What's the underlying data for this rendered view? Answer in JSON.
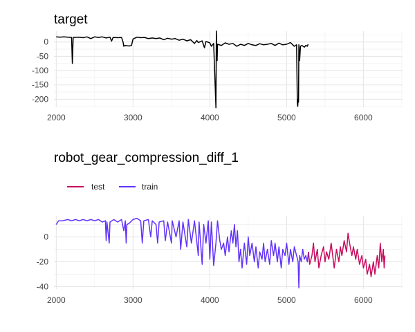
{
  "chart_data": [
    {
      "type": "line",
      "title": "target",
      "xlim": [
        1970,
        6510
      ],
      "ylim": [
        -228,
        38
      ],
      "x_ticks": [
        2000,
        3000,
        4000,
        5000,
        6000
      ],
      "y_ticks": [
        0,
        -50,
        -100,
        -150,
        -200
      ],
      "grid": true,
      "series": [
        {
          "color": "#000000",
          "points": [
            [
              2000,
              18
            ],
            [
              2050,
              17
            ],
            [
              2100,
              18
            ],
            [
              2150,
              17
            ],
            [
              2200,
              16
            ],
            [
              2210,
              -75
            ],
            [
              2220,
              16
            ],
            [
              2300,
              17
            ],
            [
              2350,
              15
            ],
            [
              2400,
              18
            ],
            [
              2450,
              12
            ],
            [
              2500,
              18
            ],
            [
              2550,
              16
            ],
            [
              2600,
              18
            ],
            [
              2650,
              14
            ],
            [
              2700,
              17
            ],
            [
              2720,
              3
            ],
            [
              2740,
              16
            ],
            [
              2800,
              15
            ],
            [
              2850,
              16
            ],
            [
              2870,
              0
            ],
            [
              2880,
              -15
            ],
            [
              2900,
              -12
            ],
            [
              2920,
              -13
            ],
            [
              2950,
              -14
            ],
            [
              2980,
              -12
            ],
            [
              3000,
              10
            ],
            [
              3050,
              17
            ],
            [
              3100,
              15
            ],
            [
              3150,
              16
            ],
            [
              3200,
              12
            ],
            [
              3250,
              14
            ],
            [
              3300,
              12
            ],
            [
              3350,
              14
            ],
            [
              3400,
              8
            ],
            [
              3450,
              13
            ],
            [
              3500,
              10
            ],
            [
              3550,
              12
            ],
            [
              3600,
              6
            ],
            [
              3650,
              10
            ],
            [
              3700,
              4
            ],
            [
              3750,
              8
            ],
            [
              3800,
              -5
            ],
            [
              3830,
              5
            ],
            [
              3850,
              -2
            ],
            [
              3900,
              4
            ],
            [
              3930,
              -20
            ],
            [
              3950,
              2
            ],
            [
              4000,
              -3
            ],
            [
              4020,
              -15
            ],
            [
              4050,
              -5
            ],
            [
              4080,
              -230
            ],
            [
              4085,
              38
            ],
            [
              4090,
              -5
            ],
            [
              4095,
              -65
            ],
            [
              4100,
              -8
            ],
            [
              4150,
              -12
            ],
            [
              4200,
              -3
            ],
            [
              4250,
              -8
            ],
            [
              4300,
              -5
            ],
            [
              4350,
              -15
            ],
            [
              4400,
              -8
            ],
            [
              4450,
              -12
            ],
            [
              4500,
              -5
            ],
            [
              4550,
              -10
            ],
            [
              4600,
              -12
            ],
            [
              4650,
              -6
            ],
            [
              4700,
              -10
            ],
            [
              4750,
              -8
            ],
            [
              4800,
              -5
            ],
            [
              4850,
              -12
            ],
            [
              4900,
              -4
            ],
            [
              4950,
              -10
            ],
            [
              5000,
              -8
            ],
            [
              5050,
              -2
            ],
            [
              5100,
              -15
            ],
            [
              5130,
              -10
            ],
            [
              5140,
              -215
            ],
            [
              5145,
              -225
            ],
            [
              5150,
              -200
            ],
            [
              5155,
              -210
            ],
            [
              5160,
              -10
            ],
            [
              5170,
              -65
            ],
            [
              5180,
              -15
            ],
            [
              5200,
              -12
            ],
            [
              5230,
              -18
            ],
            [
              5250,
              -12
            ],
            [
              5270,
              -15
            ],
            [
              5280,
              -8
            ]
          ]
        }
      ]
    },
    {
      "type": "line",
      "title": "robot_gear_compression_diff_1",
      "xlim": [
        1970,
        6510
      ],
      "ylim": [
        -42,
        17
      ],
      "x_ticks": [
        2000,
        3000,
        4000,
        5000,
        6000
      ],
      "y_ticks": [
        0,
        -20,
        -40
      ],
      "grid": true,
      "legend": {
        "placement": "top-left",
        "entries": [
          "test",
          "train"
        ]
      },
      "series": [
        {
          "name": "train",
          "color": "#6233fb",
          "points": [
            [
              2000,
              10
            ],
            [
              2030,
              13
            ],
            [
              2080,
              13
            ],
            [
              2150,
              14
            ],
            [
              2200,
              13
            ],
            [
              2250,
              14
            ],
            [
              2300,
              13
            ],
            [
              2350,
              14
            ],
            [
              2400,
              13
            ],
            [
              2450,
              14
            ],
            [
              2500,
              13
            ],
            [
              2550,
              14
            ],
            [
              2600,
              12
            ],
            [
              2640,
              13
            ],
            [
              2650,
              -3
            ],
            [
              2660,
              12
            ],
            [
              2690,
              -5
            ],
            [
              2700,
              12
            ],
            [
              2750,
              14
            ],
            [
              2800,
              12
            ],
            [
              2850,
              14
            ],
            [
              2880,
              5
            ],
            [
              2900,
              13
            ],
            [
              2910,
              -5
            ],
            [
              2920,
              10
            ],
            [
              2950,
              11
            ],
            [
              3000,
              14
            ],
            [
              3050,
              15
            ],
            [
              3100,
              13
            ],
            [
              3120,
              -5
            ],
            [
              3140,
              13
            ],
            [
              3200,
              14
            ],
            [
              3230,
              0
            ],
            [
              3250,
              13
            ],
            [
              3300,
              10
            ],
            [
              3320,
              -5
            ],
            [
              3340,
              12
            ],
            [
              3400,
              13
            ],
            [
              3420,
              -3
            ],
            [
              3450,
              12
            ],
            [
              3500,
              -5
            ],
            [
              3510,
              13
            ],
            [
              3560,
              0
            ],
            [
              3600,
              13
            ],
            [
              3620,
              -10
            ],
            [
              3650,
              12
            ],
            [
              3700,
              -8
            ],
            [
              3720,
              14
            ],
            [
              3760,
              -5
            ],
            [
              3800,
              13
            ],
            [
              3850,
              -15
            ],
            [
              3860,
              12
            ],
            [
              3900,
              -22
            ],
            [
              3920,
              10
            ],
            [
              3950,
              -5
            ],
            [
              3980,
              13
            ],
            [
              4000,
              -18
            ],
            [
              4020,
              12
            ],
            [
              4050,
              -23
            ],
            [
              4080,
              -5
            ],
            [
              4100,
              13
            ],
            [
              4130,
              -3
            ],
            [
              4150,
              -10
            ],
            [
              4180,
              -5
            ],
            [
              4200,
              -15
            ],
            [
              4230,
              0
            ],
            [
              4250,
              -12
            ],
            [
              4280,
              5
            ],
            [
              4300,
              -5
            ],
            [
              4320,
              10
            ],
            [
              4340,
              -8
            ],
            [
              4360,
              5
            ],
            [
              4380,
              -20
            ],
            [
              4400,
              -10
            ],
            [
              4420,
              -25
            ],
            [
              4450,
              -5
            ],
            [
              4480,
              -22
            ],
            [
              4500,
              0
            ],
            [
              4520,
              -15
            ],
            [
              4550,
              -5
            ],
            [
              4580,
              -20
            ],
            [
              4600,
              -8
            ],
            [
              4630,
              -25
            ],
            [
              4650,
              -12
            ],
            [
              4680,
              -18
            ],
            [
              4700,
              -5
            ],
            [
              4720,
              -20
            ],
            [
              4750,
              -10
            ],
            [
              4780,
              -22
            ],
            [
              4800,
              -3
            ],
            [
              4830,
              -15
            ],
            [
              4850,
              -5
            ],
            [
              4880,
              -20
            ],
            [
              4900,
              -8
            ],
            [
              4930,
              -25
            ],
            [
              4950,
              -10
            ],
            [
              4980,
              -15
            ],
            [
              5000,
              -5
            ],
            [
              5030,
              -22
            ],
            [
              5050,
              -10
            ],
            [
              5080,
              -20
            ],
            [
              5100,
              -8
            ],
            [
              5130,
              -15
            ],
            [
              5150,
              -20
            ],
            [
              5160,
              -41
            ],
            [
              5170,
              -15
            ],
            [
              5190,
              -20
            ],
            [
              5210,
              -10
            ],
            [
              5230,
              -18
            ],
            [
              5250,
              -15
            ],
            [
              5270,
              -20
            ],
            [
              5285,
              -12
            ]
          ]
        },
        {
          "name": "test",
          "color": "#c80c5e",
          "points": [
            [
              5285,
              -12
            ],
            [
              5300,
              -22
            ],
            [
              5330,
              -15
            ],
            [
              5350,
              -5
            ],
            [
              5370,
              -20
            ],
            [
              5400,
              -10
            ],
            [
              5420,
              -25
            ],
            [
              5450,
              -15
            ],
            [
              5480,
              -8
            ],
            [
              5500,
              -20
            ],
            [
              5520,
              -12
            ],
            [
              5550,
              -18
            ],
            [
              5580,
              -5
            ],
            [
              5600,
              -15
            ],
            [
              5620,
              -25
            ],
            [
              5650,
              -10
            ],
            [
              5680,
              -20
            ],
            [
              5700,
              -8
            ],
            [
              5720,
              -15
            ],
            [
              5750,
              -3
            ],
            [
              5780,
              -12
            ],
            [
              5800,
              3
            ],
            [
              5820,
              -5
            ],
            [
              5850,
              -15
            ],
            [
              5870,
              -8
            ],
            [
              5900,
              -18
            ],
            [
              5920,
              -10
            ],
            [
              5950,
              -22
            ],
            [
              5980,
              -15
            ],
            [
              6000,
              -25
            ],
            [
              6030,
              -18
            ],
            [
              6050,
              -30
            ],
            [
              6080,
              -22
            ],
            [
              6100,
              -32
            ],
            [
              6130,
              -20
            ],
            [
              6150,
              -30
            ],
            [
              6180,
              -15
            ],
            [
              6200,
              -25
            ],
            [
              6220,
              -5
            ],
            [
              6240,
              -20
            ],
            [
              6260,
              -10
            ],
            [
              6270,
              -25
            ],
            [
              6280,
              -15
            ]
          ]
        }
      ]
    }
  ]
}
